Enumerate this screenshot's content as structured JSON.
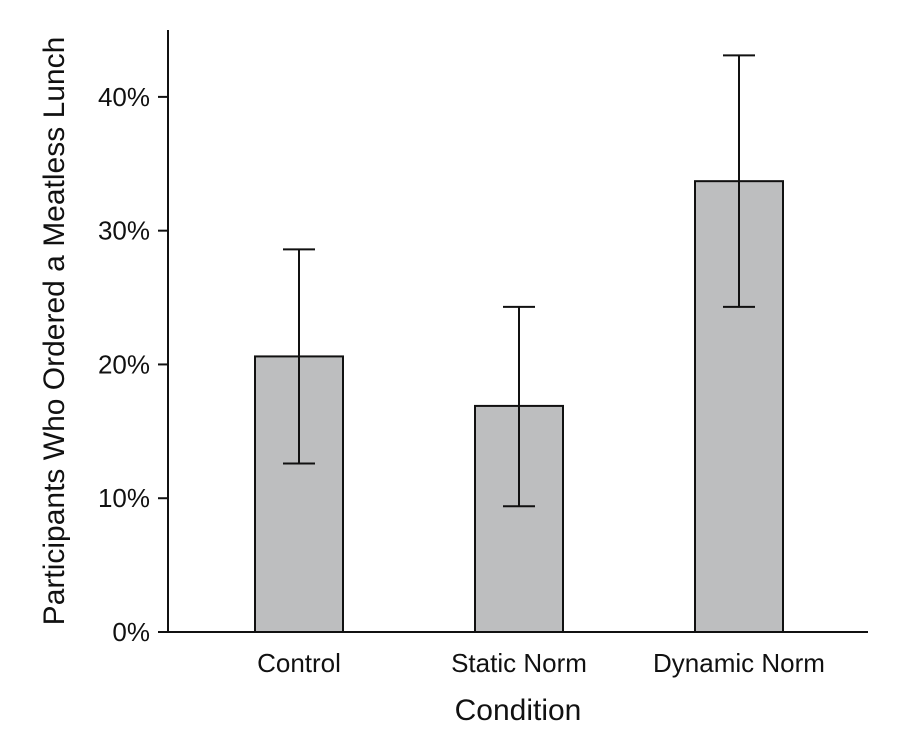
{
  "chart_data": {
    "type": "bar",
    "title": "",
    "xlabel": "Condition",
    "ylabel": "Participants Who Ordered a Meatless Lunch",
    "categories": [
      "Control",
      "Static Norm",
      "Dynamic Norm"
    ],
    "values": [
      0.206,
      0.169,
      0.337
    ],
    "error_low": [
      0.126,
      0.094,
      0.243
    ],
    "error_high": [
      0.286,
      0.243,
      0.431
    ],
    "ylim": [
      0,
      0.45
    ],
    "yticks": [
      0,
      0.1,
      0.2,
      0.3,
      0.4
    ],
    "ytick_labels": [
      "0%",
      "10%",
      "20%",
      "30%",
      "40%"
    ],
    "grid": false,
    "legend": "none",
    "bar_color": "#bdbebf",
    "edge_color": "#111111"
  }
}
